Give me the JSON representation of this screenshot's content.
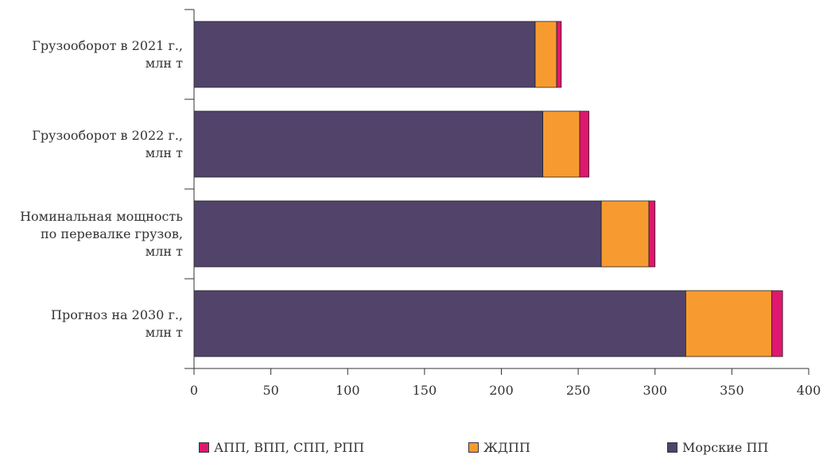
{
  "chart_data": {
    "type": "bar",
    "orientation": "horizontal",
    "stacked": true,
    "categories": [
      [
        "Грузооборот в 2021 г.,",
        "млн т"
      ],
      [
        "Грузооборот в 2022 г.,",
        "млн т"
      ],
      [
        "Номинальная мощность",
        "по перевалке грузов,",
        "млн т"
      ],
      [
        "Прогноз на 2030 г.,",
        "млн т"
      ]
    ],
    "series": [
      {
        "name": "Морские ПП",
        "color": "#51436a",
        "values": [
          222,
          227,
          265,
          320
        ]
      },
      {
        "name": "ЖДПП",
        "color": "#f79b30",
        "values": [
          14,
          24,
          31,
          56
        ]
      },
      {
        "name": "АПП, ВПП, СПП, РПП",
        "color": "#e0176f",
        "values": [
          3,
          6,
          4,
          7
        ]
      }
    ],
    "xlim": [
      0,
      400
    ],
    "xticks": [
      "0",
      "50",
      "100",
      "150",
      "200",
      "250",
      "300",
      "350",
      "400"
    ],
    "grid": false,
    "legend_position": "bottom",
    "legend_order": [
      "АПП, ВПП, СПП, РПП",
      "ЖДПП",
      "Морские ПП"
    ]
  }
}
